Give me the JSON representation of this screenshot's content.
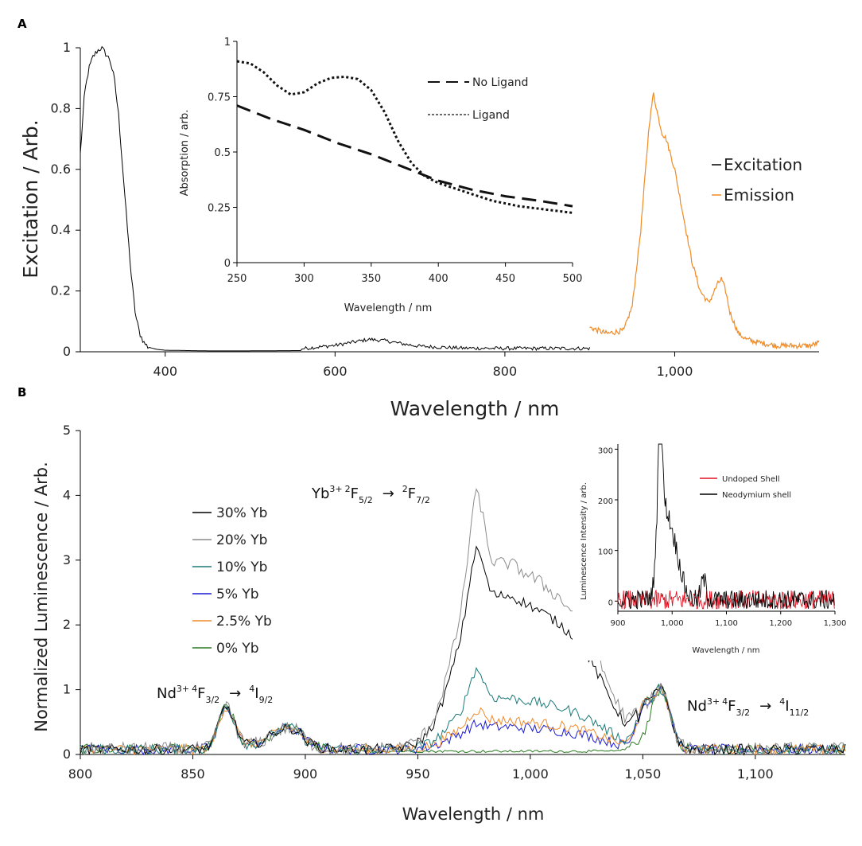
{
  "panel_a_label": "A",
  "panel_b_label": "B",
  "annotations": {
    "yb": {
      "pre": "Yb",
      "sup1": "3+",
      "sup2": "2",
      "mid1": "F",
      "sub1": "5/2",
      "arrow": "→",
      "sup3": "2",
      "mid2": "F",
      "sub2": "7/2"
    },
    "nd1": {
      "pre": "Nd",
      "sup1": "3+",
      "sup2": "4",
      "mid1": "F",
      "sub1": "3/2",
      "arrow": "→",
      "sup3": "4",
      "mid2": "I",
      "sub2": "9/2"
    },
    "nd2": {
      "pre": "Nd",
      "sup1": "3+",
      "sup2": "4",
      "mid1": "F",
      "sub1": "3/2",
      "arrow": "→",
      "sup3": "4",
      "mid2": "I",
      "sub2": "11/2"
    }
  },
  "colors": {
    "excitation": "#000000",
    "emission": "#f08a24",
    "ligand": "#111111",
    "noligand": "#111111",
    "yb30": "#000000",
    "yb20": "#8c8c8c",
    "yb10": "#1b7a78",
    "yb5": "#1a1ad6",
    "yb25": "#ee8a2c",
    "yb0": "#2a7a20",
    "undoped": "#e01020",
    "neodymium": "#000000"
  },
  "chart_data": [
    {
      "id": "A_main",
      "type": "line",
      "title": "",
      "xlabel": "Wavelength / nm",
      "ylabel": "Excitation / Arb.",
      "xlim": [
        300,
        1170
      ],
      "ylim": [
        0,
        1
      ],
      "xticks": [
        400,
        600,
        800,
        1000
      ],
      "xtick_labels": [
        "400",
        "600",
        "800",
        "1,000"
      ],
      "yticks": [
        0,
        0.2,
        0.4,
        0.6,
        0.8,
        1
      ],
      "ytick_labels": [
        "0",
        "0.2",
        "0.4",
        "0.6",
        "0.8",
        "1"
      ],
      "legend": {
        "placement": "right",
        "entries": [
          "Excitation",
          "Emission"
        ]
      },
      "series": [
        {
          "name": "Excitation",
          "x": [
            300,
            305,
            310,
            315,
            320,
            325,
            330,
            335,
            340,
            345,
            350,
            355,
            360,
            365,
            370,
            375,
            380,
            390,
            400,
            450,
            500,
            560,
            600,
            620,
            640,
            660,
            680,
            700,
            750,
            800,
            850,
            900
          ],
          "y": [
            0.65,
            0.85,
            0.93,
            0.97,
            0.99,
            1.0,
            0.98,
            0.96,
            0.9,
            0.78,
            0.6,
            0.42,
            0.25,
            0.12,
            0.06,
            0.03,
            0.015,
            0.008,
            0.005,
            0.003,
            0.003,
            0.004,
            0.015,
            0.025,
            0.035,
            0.03,
            0.02,
            0.012,
            0.006,
            0.005,
            0.005,
            0.005
          ]
        },
        {
          "name": "Emission",
          "x": [
            900,
            920,
            940,
            950,
            960,
            970,
            975,
            980,
            985,
            990,
            1000,
            1010,
            1020,
            1030,
            1040,
            1050,
            1055,
            1060,
            1065,
            1075,
            1085,
            1100,
            1120,
            1140,
            1160,
            1170
          ],
          "y": [
            0.08,
            0.06,
            0.07,
            0.15,
            0.4,
            0.75,
            0.85,
            0.78,
            0.72,
            0.7,
            0.6,
            0.45,
            0.3,
            0.2,
            0.16,
            0.22,
            0.24,
            0.2,
            0.13,
            0.06,
            0.04,
            0.03,
            0.02,
            0.02,
            0.02,
            0.03
          ]
        }
      ]
    },
    {
      "id": "A_inset",
      "type": "line",
      "xlabel": "Wavelength / nm",
      "ylabel": "Absorption / arb.",
      "xlim": [
        250,
        500
      ],
      "ylim": [
        0,
        1
      ],
      "xticks": [
        250,
        300,
        350,
        400,
        450,
        500
      ],
      "xtick_labels": [
        "250",
        "300",
        "350",
        "400",
        "450",
        "500"
      ],
      "yticks": [
        0,
        0.25,
        0.5,
        0.75,
        1
      ],
      "ytick_labels": [
        "0",
        "0.25",
        "0.5",
        "0.75",
        "1"
      ],
      "legend": {
        "placement": "top-right",
        "entries": [
          "No Ligand",
          "Ligand"
        ]
      },
      "series": [
        {
          "name": "No Ligand",
          "style": "dashed",
          "x": [
            250,
            275,
            300,
            325,
            350,
            375,
            400,
            425,
            450,
            475,
            500
          ],
          "y": [
            0.71,
            0.65,
            0.6,
            0.54,
            0.49,
            0.43,
            0.37,
            0.33,
            0.3,
            0.28,
            0.255
          ]
        },
        {
          "name": "Ligand",
          "style": "dotted",
          "x": [
            250,
            260,
            270,
            280,
            290,
            300,
            310,
            320,
            330,
            340,
            350,
            360,
            370,
            380,
            390,
            400,
            420,
            440,
            460,
            480,
            500
          ],
          "y": [
            0.91,
            0.9,
            0.86,
            0.8,
            0.76,
            0.77,
            0.81,
            0.835,
            0.84,
            0.83,
            0.78,
            0.68,
            0.55,
            0.45,
            0.39,
            0.36,
            0.32,
            0.28,
            0.255,
            0.24,
            0.225
          ]
        }
      ]
    },
    {
      "id": "B_main",
      "type": "line",
      "xlabel": "Wavelength / nm",
      "ylabel": "Normalized Luminescence / Arb.",
      "xlim": [
        800,
        1140
      ],
      "ylim": [
        0,
        5
      ],
      "xticks": [
        800,
        850,
        900,
        950,
        1000,
        1050,
        1100
      ],
      "xtick_labels": [
        "800",
        "850",
        "900",
        "950",
        "1,000",
        "1,050",
        "1,100"
      ],
      "yticks": [
        0,
        1,
        2,
        3,
        4,
        5
      ],
      "ytick_labels": [
        "0",
        "1",
        "2",
        "3",
        "4",
        "5"
      ],
      "legend": {
        "placement": "center-left",
        "entries": [
          "30% Yb",
          "20% Yb",
          "10% Yb",
          "5% Yb",
          "2.5% Yb",
          "0% Yb"
        ]
      },
      "series": [
        {
          "name": "30% Yb",
          "key": "yb30",
          "peak": 3.3,
          "shoulder": 2.4
        },
        {
          "name": "20% Yb",
          "key": "yb20",
          "peak": 4.2,
          "shoulder": 2.9
        },
        {
          "name": "10% Yb",
          "key": "yb10",
          "peak": 1.3,
          "shoulder": 0.8
        },
        {
          "name": "5% Yb",
          "key": "yb5",
          "peak": 0.42,
          "shoulder": 0.35
        },
        {
          "name": "2.5% Yb",
          "key": "yb25",
          "peak": 0.65,
          "shoulder": 0.45
        },
        {
          "name": "0% Yb",
          "key": "yb0",
          "peak": 0.05,
          "shoulder": 0.04
        }
      ],
      "common_features": {
        "nd_865_peak": 0.7,
        "nd_893_peak": 0.42,
        "nd_1058_peak": 1.0,
        "noise_baseline": 0.1
      }
    },
    {
      "id": "B_inset",
      "type": "line",
      "xlabel": "Wavelength / nm",
      "ylabel": "Luminescence Intensity / arb.",
      "xlim": [
        900,
        1300
      ],
      "ylim": [
        -20,
        310
      ],
      "xticks": [
        900,
        1000,
        1100,
        1200,
        1300
      ],
      "xtick_labels": [
        "900",
        "1,000",
        "1,100",
        "1,200",
        "1,300"
      ],
      "yticks": [
        0,
        100,
        200,
        300
      ],
      "ytick_labels": [
        "0",
        "100",
        "200",
        "300"
      ],
      "legend": {
        "placement": "top-right",
        "entries": [
          "Undoped Shell",
          "Neodymium shell"
        ]
      },
      "series": [
        {
          "name": "Undoped Shell",
          "key": "undoped",
          "peak": 20
        },
        {
          "name": "Neodymium shell",
          "key": "neodymium",
          "peak": 310,
          "peak_x": 978
        }
      ]
    }
  ]
}
